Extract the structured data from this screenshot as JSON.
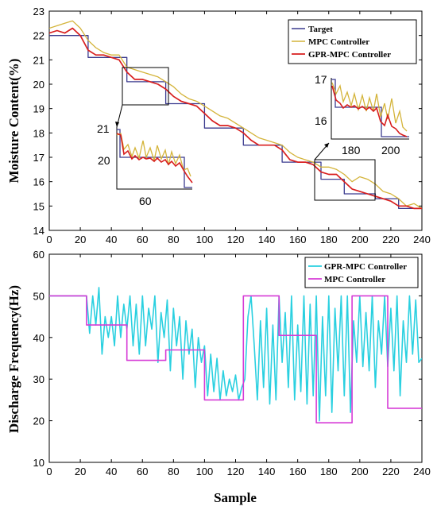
{
  "colors": {
    "target": "#3b3b8f",
    "mpc_top": "#d4b43a",
    "gpr_top": "#d81e1e",
    "gpr_bottom": "#2ad0e0",
    "mpc_bottom": "#d63bd6"
  },
  "chart_data": [
    {
      "type": "line",
      "xlabel": "",
      "ylabel": "Moisture Content(%)",
      "xlim": [
        0,
        240
      ],
      "ylim": [
        14,
        23
      ],
      "xticks": [
        "0",
        "20",
        "40",
        "60",
        "80",
        "100",
        "120",
        "140",
        "160",
        "180",
        "200",
        "220",
        "240"
      ],
      "yticks": [
        "14",
        "15",
        "16",
        "17",
        "18",
        "19",
        "20",
        "21",
        "22",
        "23"
      ],
      "legend_position": "top-right",
      "series": [
        {
          "name": "Target",
          "x": [
            0,
            25,
            25,
            50,
            50,
            75,
            75,
            100,
            100,
            125,
            125,
            150,
            150,
            175,
            175,
            190,
            190,
            210,
            210,
            225,
            225,
            240
          ],
          "values": [
            22.0,
            22.0,
            21.1,
            21.1,
            20.1,
            20.1,
            19.2,
            19.2,
            18.2,
            18.2,
            17.5,
            17.5,
            16.8,
            16.8,
            16.1,
            16.1,
            15.5,
            15.5,
            15.3,
            15.3,
            14.9,
            14.9
          ]
        },
        {
          "name": "MPC Controller",
          "x": [
            0,
            5,
            10,
            15,
            20,
            25,
            30,
            35,
            40,
            45,
            50,
            55,
            60,
            65,
            70,
            75,
            80,
            85,
            90,
            95,
            100,
            105,
            110,
            115,
            120,
            125,
            130,
            135,
            140,
            145,
            150,
            155,
            160,
            165,
            170,
            175,
            180,
            185,
            190,
            195,
            200,
            205,
            210,
            215,
            220,
            225,
            230,
            235,
            240
          ],
          "values": [
            22.3,
            22.4,
            22.5,
            22.6,
            22.3,
            21.8,
            21.5,
            21.3,
            21.2,
            21.2,
            20.7,
            20.6,
            20.5,
            20.4,
            20.3,
            20.1,
            19.9,
            19.6,
            19.4,
            19.3,
            19.1,
            18.9,
            18.7,
            18.6,
            18.4,
            18.2,
            18.0,
            17.8,
            17.7,
            17.6,
            17.5,
            17.2,
            17.0,
            16.9,
            16.8,
            16.6,
            16.6,
            16.5,
            16.3,
            16.0,
            16.2,
            16.1,
            15.9,
            15.6,
            15.5,
            15.3,
            15.0,
            15.1,
            14.9
          ]
        },
        {
          "name": "GPR-MPC Controller",
          "x": [
            0,
            5,
            10,
            15,
            20,
            25,
            30,
            35,
            40,
            45,
            50,
            55,
            60,
            65,
            70,
            75,
            80,
            85,
            90,
            95,
            100,
            105,
            110,
            115,
            120,
            125,
            130,
            135,
            140,
            145,
            150,
            155,
            160,
            165,
            170,
            175,
            180,
            185,
            190,
            195,
            200,
            205,
            210,
            215,
            220,
            225,
            230,
            235,
            240
          ],
          "values": [
            22.1,
            22.2,
            22.1,
            22.3,
            22.0,
            21.4,
            21.2,
            21.2,
            21.1,
            21.0,
            20.5,
            20.2,
            20.2,
            20.1,
            20.0,
            19.8,
            19.5,
            19.3,
            19.2,
            19.1,
            18.8,
            18.5,
            18.3,
            18.3,
            18.2,
            18.0,
            17.7,
            17.5,
            17.5,
            17.5,
            17.3,
            16.9,
            16.8,
            16.8,
            16.7,
            16.4,
            16.3,
            16.3,
            16.0,
            15.7,
            15.6,
            15.5,
            15.4,
            15.3,
            15.2,
            15.0,
            15.0,
            14.9,
            14.9
          ]
        }
      ],
      "insets": [
        {
          "yticks": [
            "21",
            "20"
          ],
          "xticks": [
            "60"
          ]
        },
        {
          "yticks": [
            "17",
            "16"
          ],
          "xticks": [
            "180",
            "200"
          ]
        }
      ]
    },
    {
      "type": "line",
      "xlabel": "Sample",
      "ylabel": "Discharge Frequency(Hz)",
      "xlim": [
        0,
        240
      ],
      "ylim": [
        10,
        60
      ],
      "xticks": [
        "0",
        "20",
        "40",
        "60",
        "80",
        "100",
        "120",
        "140",
        "160",
        "180",
        "200",
        "220",
        "240"
      ],
      "yticks": [
        "10",
        "20",
        "30",
        "40",
        "50",
        "60"
      ],
      "legend_position": "top-right",
      "series": [
        {
          "name": "GPR-MPC Controller",
          "x": [
            0,
            24,
            26,
            28,
            30,
            32,
            34,
            36,
            38,
            40,
            42,
            44,
            46,
            48,
            50,
            52,
            54,
            56,
            58,
            60,
            62,
            64,
            66,
            68,
            70,
            72,
            74,
            76,
            78,
            80,
            82,
            84,
            86,
            88,
            90,
            92,
            94,
            96,
            98,
            100,
            102,
            104,
            106,
            108,
            110,
            112,
            114,
            116,
            118,
            120,
            122,
            124,
            126,
            128,
            130,
            132,
            134,
            136,
            138,
            140,
            142,
            144,
            146,
            148,
            150,
            152,
            154,
            156,
            158,
            160,
            162,
            164,
            166,
            168,
            170,
            172,
            174,
            176,
            178,
            180,
            182,
            184,
            186,
            188,
            190,
            192,
            194,
            196,
            198,
            200,
            202,
            204,
            206,
            208,
            210,
            212,
            214,
            216,
            218,
            220,
            222,
            224,
            226,
            228,
            230,
            232,
            234,
            236,
            238,
            240
          ],
          "values": [
            50,
            50,
            41,
            50,
            43,
            52,
            36,
            45,
            40,
            45,
            38,
            50,
            40,
            48,
            42,
            50,
            38,
            48,
            36,
            50,
            38,
            47,
            42,
            50,
            34,
            46,
            40,
            49,
            32,
            47,
            38,
            45,
            30,
            44,
            36,
            42,
            28,
            40,
            34,
            38,
            26,
            36,
            27,
            35,
            25,
            32,
            26,
            30,
            27,
            31,
            25,
            28,
            30,
            45,
            50,
            38,
            25,
            44,
            28,
            47,
            24,
            43,
            25,
            50,
            34,
            46,
            28,
            50,
            25,
            43,
            27,
            50,
            24,
            48,
            26,
            50,
            20,
            45,
            26,
            50,
            22,
            47,
            32,
            50,
            26,
            50,
            22,
            44,
            34,
            50,
            33,
            46,
            32,
            50,
            28,
            44,
            36,
            50,
            33,
            47,
            32,
            50,
            26,
            44,
            34,
            50,
            36,
            49,
            34,
            35
          ]
        },
        {
          "name": "MPC Controller",
          "x": [
            0,
            24,
            24,
            50,
            50,
            75,
            75,
            100,
            100,
            125,
            125,
            148,
            148,
            172,
            172,
            195,
            195,
            218,
            218,
            240
          ],
          "values": [
            50,
            50,
            43,
            43,
            34.5,
            34.5,
            37,
            37,
            25,
            25,
            50,
            50,
            40.5,
            40.5,
            19.5,
            19.5,
            50,
            50,
            23,
            23
          ]
        }
      ]
    }
  ]
}
